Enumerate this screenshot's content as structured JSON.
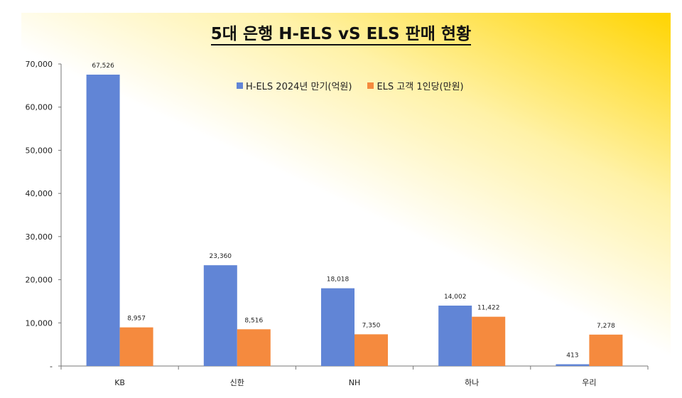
{
  "chart_data": {
    "type": "bar",
    "title": "5대 은행 H-ELS vS ELS 판매 현황",
    "categories": [
      "KB",
      "신한",
      "NH",
      "하나",
      "우리"
    ],
    "series": [
      {
        "name": "H-ELS 2024년 만기(억원)",
        "values": [
          67526,
          23360,
          18018,
          14002,
          413
        ],
        "labels": [
          "67,526",
          "23,360",
          "18,018",
          "14,002",
          "413"
        ],
        "color": "#6185D6"
      },
      {
        "name": "ELS 고객 1인당(만원)",
        "values": [
          8957,
          8516,
          7350,
          11422,
          7278
        ],
        "labels": [
          "8,957",
          "8,516",
          "7,350",
          "11,422",
          "7,278"
        ],
        "color": "#F58A3E"
      }
    ],
    "ylim": [
      0,
      70000
    ],
    "yticks": [
      0,
      10000,
      20000,
      30000,
      40000,
      50000,
      60000,
      70000
    ],
    "ytick_labels": [
      "-",
      "10,000",
      "20,000",
      "30,000",
      "40,000",
      "50,000",
      "60,000",
      "70,000"
    ],
    "xlabel": "",
    "ylabel": "",
    "legend_position": "top",
    "grid": false,
    "background_gradient": [
      "#ffffff",
      "#FFD400"
    ]
  }
}
